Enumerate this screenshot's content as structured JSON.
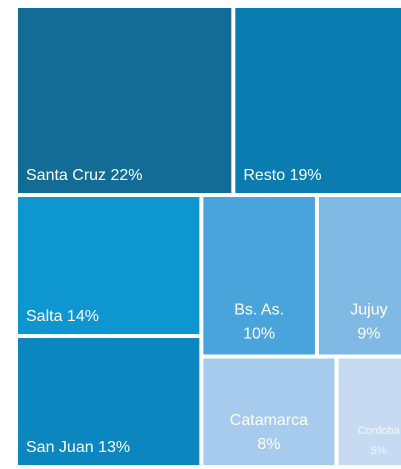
{
  "chart_data": {
    "type": "treemap",
    "categories": [
      "Santa Cruz",
      "Resto",
      "Salta",
      "San Juan",
      "Bs. As.",
      "Jujuy",
      "Catamarca",
      "Cordoba"
    ],
    "values": [
      22,
      19,
      14,
      13,
      10,
      9,
      8,
      5
    ],
    "value_labels": [
      "22%",
      "19%",
      "14%",
      "13%",
      "10%",
      "9%",
      "8%",
      "5%"
    ],
    "colors": [
      "#126c96",
      "#0b7cb0",
      "#0e96d0",
      "#0b86bf",
      "#4aa4dc",
      "#80b9e4",
      "#a7cbec",
      "#c6daf1"
    ]
  }
}
